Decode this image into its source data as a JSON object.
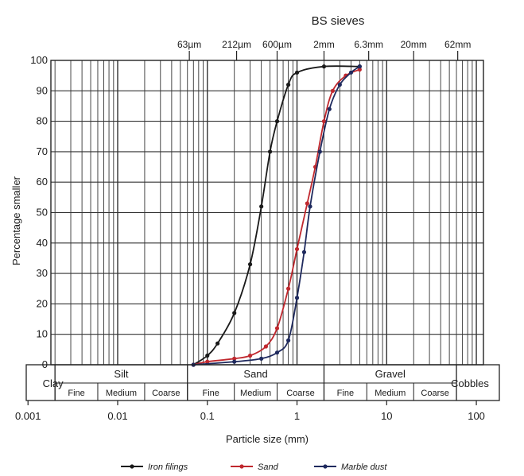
{
  "chart_data": {
    "type": "line",
    "title": "BS sieves",
    "xlabel": "Particle size (mm)",
    "ylabel": "Percentage smaller",
    "x_scale": "log",
    "xlim": [
      0.0018,
      120
    ],
    "ylim": [
      0,
      100
    ],
    "grid": true,
    "x_ticks": [
      {
        "value": 0.001,
        "label": "0.001"
      },
      {
        "value": 0.01,
        "label": "0.01"
      },
      {
        "value": 0.1,
        "label": "0.1"
      },
      {
        "value": 1,
        "label": "1"
      },
      {
        "value": 10,
        "label": "10"
      },
      {
        "value": 100,
        "label": "100"
      }
    ],
    "y_ticks": [
      0,
      10,
      20,
      30,
      40,
      50,
      60,
      70,
      80,
      90,
      100
    ],
    "sieves": [
      {
        "value": 0.063,
        "label": "63µm"
      },
      {
        "value": 0.212,
        "label": "212µm"
      },
      {
        "value": 0.6,
        "label": "600µm"
      },
      {
        "value": 2,
        "label": "2mm"
      },
      {
        "value": 6.3,
        "label": "6.3mm"
      },
      {
        "value": 20,
        "label": "20mm"
      },
      {
        "value": 62,
        "label": "62mm"
      }
    ],
    "classification": {
      "main": [
        {
          "label": "Clay",
          "from": 0.0018,
          "to": 0.002
        },
        {
          "label": "Silt",
          "from": 0.002,
          "to": 0.06
        },
        {
          "label": "Sand",
          "from": 0.06,
          "to": 2
        },
        {
          "label": "Gravel",
          "from": 2,
          "to": 60
        },
        {
          "label": "Cobbles",
          "from": 60,
          "to": 120
        }
      ],
      "sub": [
        {
          "label": "Fine",
          "from": 0.002,
          "to": 0.006
        },
        {
          "label": "Medium",
          "from": 0.006,
          "to": 0.02
        },
        {
          "label": "Coarse",
          "from": 0.02,
          "to": 0.06
        },
        {
          "label": "Fine",
          "from": 0.06,
          "to": 0.2
        },
        {
          "label": "Medium",
          "from": 0.2,
          "to": 0.6
        },
        {
          "label": "Coarse",
          "from": 0.6,
          "to": 2
        },
        {
          "label": "Fine",
          "from": 2,
          "to": 6
        },
        {
          "label": "Medium",
          "from": 6,
          "to": 20
        },
        {
          "label": "Coarse",
          "from": 20,
          "to": 60
        }
      ]
    },
    "series": [
      {
        "name": "Iron filings",
        "color": "#1a1a1a",
        "points": [
          [
            0.07,
            0
          ],
          [
            0.1,
            3
          ],
          [
            0.13,
            7
          ],
          [
            0.2,
            17
          ],
          [
            0.3,
            33
          ],
          [
            0.4,
            52
          ],
          [
            0.5,
            70
          ],
          [
            0.6,
            80
          ],
          [
            0.8,
            92
          ],
          [
            1.0,
            96
          ],
          [
            2.0,
            98
          ],
          [
            5.0,
            98
          ]
        ]
      },
      {
        "name": "Sand",
        "color": "#c0282e",
        "points": [
          [
            0.07,
            0
          ],
          [
            0.1,
            1
          ],
          [
            0.2,
            2
          ],
          [
            0.3,
            3
          ],
          [
            0.45,
            6
          ],
          [
            0.6,
            12
          ],
          [
            0.8,
            25
          ],
          [
            1.0,
            38
          ],
          [
            1.3,
            53
          ],
          [
            1.6,
            65
          ],
          [
            2.0,
            80
          ],
          [
            2.5,
            90
          ],
          [
            3.5,
            95
          ],
          [
            5.0,
            97
          ]
        ]
      },
      {
        "name": "Marble dust",
        "color": "#1f2a5e",
        "points": [
          [
            0.07,
            0
          ],
          [
            0.2,
            1
          ],
          [
            0.4,
            2
          ],
          [
            0.6,
            4
          ],
          [
            0.8,
            8
          ],
          [
            1.0,
            22
          ],
          [
            1.2,
            37
          ],
          [
            1.4,
            52
          ],
          [
            1.8,
            70
          ],
          [
            2.3,
            84
          ],
          [
            3.0,
            92
          ],
          [
            4.0,
            96
          ],
          [
            5.0,
            98
          ]
        ]
      }
    ]
  }
}
